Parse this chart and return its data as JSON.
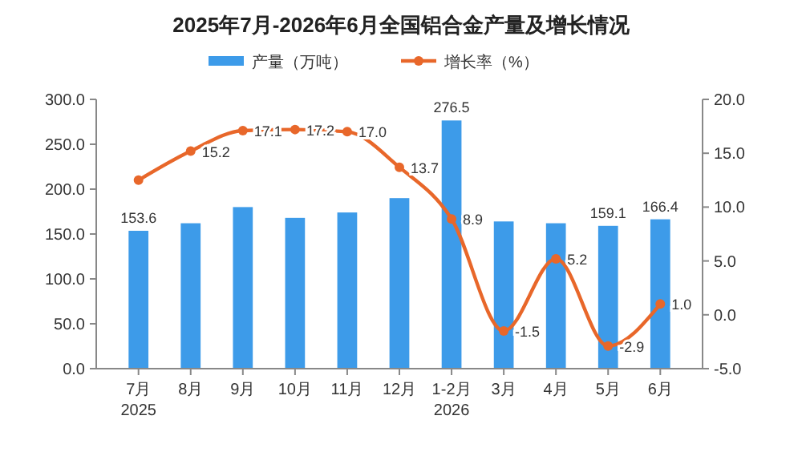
{
  "chart_data": {
    "type": "bar",
    "title": "2025年7月-2026年6月全国铝合金产量及增长情况",
    "categories": [
      "7月\n2025",
      "8月",
      "9月",
      "10月",
      "11月",
      "12月",
      "1-2月\n2026",
      "3月",
      "4月",
      "5月",
      "6月"
    ],
    "series": [
      {
        "name": "产量（万吨）",
        "color": "#3d9be9",
        "values": [
          153.6,
          162,
          180,
          168,
          174,
          190,
          276.5,
          164,
          162,
          159.1,
          166.4
        ],
        "value_labels": [
          "153.6",
          null,
          null,
          null,
          null,
          null,
          "276.5",
          null,
          null,
          "159.1",
          "166.4"
        ]
      },
      {
        "name": "增长率（%）",
        "type": "line",
        "axis": "y2",
        "color": "#e8672a",
        "marker": "circle",
        "values": [
          12.5,
          15.2,
          17.1,
          17.2,
          17.0,
          13.7,
          8.9,
          -1.5,
          5.2,
          -2.9,
          1.0
        ],
        "value_labels": [
          null,
          "15.2",
          "17.1",
          "17.2",
          "17.0",
          "13.7",
          "8.9",
          "-1.5",
          "5.2",
          "-2.9",
          "1.0"
        ]
      }
    ],
    "ylim": [
      0,
      300
    ],
    "yticks": [
      {
        "value": 0,
        "label": "0.0"
      },
      {
        "value": 50,
        "label": "50.0"
      },
      {
        "value": 100,
        "label": "100.0"
      },
      {
        "value": 150,
        "label": "150.0"
      },
      {
        "value": 200,
        "label": "200.0"
      },
      {
        "value": 250,
        "label": "250.0"
      },
      {
        "value": 300,
        "label": "300.0"
      }
    ],
    "y2lim": [
      -5,
      20
    ],
    "y2ticks": [
      {
        "value": -5,
        "label": "-5.0"
      },
      {
        "value": 0,
        "label": "0.0"
      },
      {
        "value": 5,
        "label": "5.0"
      },
      {
        "value": 10,
        "label": "10.0"
      },
      {
        "value": 15,
        "label": "15.0"
      },
      {
        "value": 20,
        "label": "20.0"
      }
    ],
    "legend": "top",
    "grid": false
  }
}
